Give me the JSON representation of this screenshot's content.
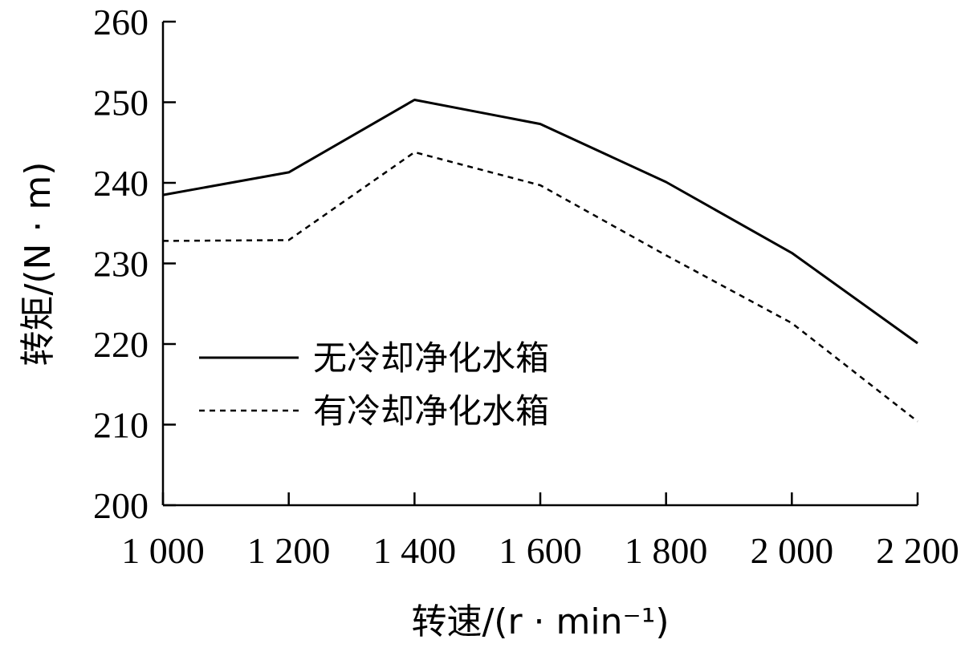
{
  "chart_data": {
    "type": "line",
    "xlabel": "转速/(r · min⁻¹)",
    "ylabel": "转矩/(N · m)",
    "x": [
      1000,
      1200,
      1400,
      1600,
      1800,
      2000,
      2200
    ],
    "x_tick_labels": [
      "1 000",
      "1 200",
      "1 400",
      "1 600",
      "1 800",
      "2 000",
      "2 200"
    ],
    "y_tick_labels": [
      "200",
      "210",
      "220",
      "230",
      "240",
      "250",
      "260"
    ],
    "xlim": [
      1000,
      2200
    ],
    "ylim": [
      200,
      260
    ],
    "grid": false,
    "legend_position": "center-left",
    "series": [
      {
        "name": "无冷却净化水箱",
        "style": "solid",
        "color": "#000000",
        "values": [
          238.5,
          241.3,
          250.3,
          247.3,
          240.1,
          231.3,
          220.1
        ]
      },
      {
        "name": "有冷却净化水箱",
        "style": "dashed",
        "color": "#000000",
        "values": [
          232.8,
          232.9,
          243.8,
          239.7,
          231.0,
          222.6,
          210.4
        ]
      }
    ]
  }
}
